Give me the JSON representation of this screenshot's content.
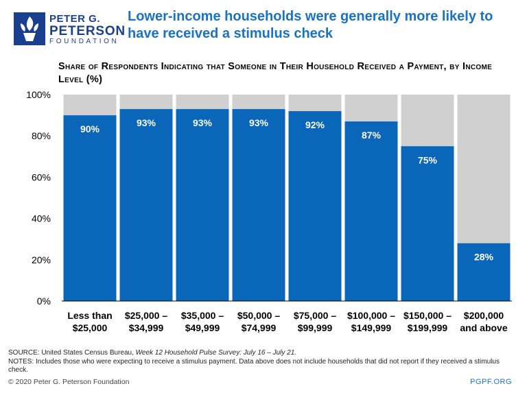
{
  "logo": {
    "line1": "PETER G.",
    "line2": "PETERSON",
    "line3": "FOUNDATION",
    "color": "#1a3f8f"
  },
  "headline": "Lower-income households were generally more likely to have received a stimulus check",
  "subtitle": "Share of Respondents Indicating that Someone in Their Household Received a Payment, by Income Level (%)",
  "chart_data": {
    "type": "bar",
    "stacked_background": true,
    "categories": [
      [
        "Less than",
        "$25,000"
      ],
      [
        "$25,000 –",
        "$34,999"
      ],
      [
        "$35,000 –",
        "$49,999"
      ],
      [
        "$50,000 –",
        "$74,999"
      ],
      [
        "$75,000 –",
        "$99,999"
      ],
      [
        "$100,000 –",
        "$149,999"
      ],
      [
        "$150,000 –",
        "$199,999"
      ],
      [
        "$200,000",
        "and above"
      ]
    ],
    "values": [
      90,
      93,
      93,
      93,
      92,
      87,
      75,
      28
    ],
    "labels": [
      "90%",
      "93%",
      "93%",
      "93%",
      "92%",
      "87%",
      "75%",
      "28%"
    ],
    "ylim": [
      0,
      100
    ],
    "yticks": [
      0,
      20,
      40,
      60,
      80,
      100
    ],
    "ytick_labels": [
      "0%",
      "20%",
      "40%",
      "60%",
      "80%",
      "100%"
    ],
    "bar_color": "#0a66b8",
    "background_color": "#d0d0d0",
    "label_color": "#ffffff"
  },
  "footer": {
    "source_prefix": "SOURCE: United States Census Bureau, ",
    "source_italic": "Week 12 Household Pulse Survey: July 16 – July 21.",
    "notes": "NOTES: Includes those who were expecting to receive a stimulus payment. Data above does not include households that did not report if they received a stimulus check.",
    "copyright": "© 2020 Peter G. Peterson Foundation",
    "site": "PGPF.ORG"
  }
}
